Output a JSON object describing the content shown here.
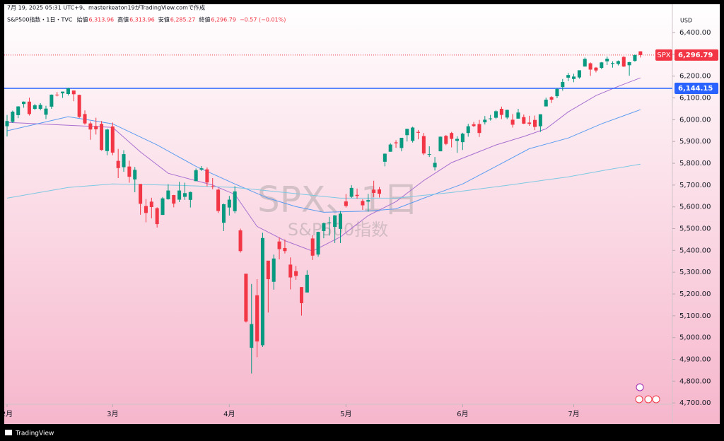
{
  "header": {
    "created": "7月 19, 2025 05:31 UTC+9、masterkeaton19がTradingView.comで作成",
    "brand": "TradingView"
  },
  "chart_data": {
    "type": "candlestick",
    "legend": {
      "symbol": "S&P500指数・1日・TVC",
      "items": [
        {
          "label": "始値",
          "value": "6,313.96"
        },
        {
          "label": "高値",
          "value": "6,313.96"
        },
        {
          "label": "安値",
          "value": "6,285.27"
        },
        {
          "label": "終値",
          "value": "6,296.79"
        }
      ],
      "change": "−0.57 (−0.01%)"
    },
    "watermark": {
      "title": "SPX、1日",
      "subtitle": "S&P500指数"
    },
    "currency": "USD",
    "up_color": "#089981",
    "down_color": "#f23645",
    "ohlc": [
      [
        5970,
        6022,
        5923,
        5994
      ],
      [
        5990,
        6042,
        5985,
        6037
      ],
      [
        6021,
        6062,
        6007,
        6061
      ],
      [
        6072,
        6084,
        6055,
        6083
      ],
      [
        6083,
        6101,
        6019,
        6026
      ],
      [
        6050,
        6073,
        6044,
        6066
      ],
      [
        6050,
        6076,
        6043,
        6068
      ],
      [
        6023,
        6064,
        6003,
        6051
      ],
      [
        6060,
        6116,
        6050,
        6115
      ],
      [
        6115,
        6127,
        6107,
        6114
      ],
      [
        6121,
        6129,
        6100,
        6129
      ],
      [
        6118,
        6147,
        6111,
        6144
      ],
      [
        6134,
        6134,
        6085,
        6117
      ],
      [
        6114,
        6115,
        6008,
        6013
      ],
      [
        6026,
        6043,
        5977,
        5983
      ],
      [
        5983,
        5992,
        5908,
        5955
      ],
      [
        5971,
        6009,
        5932,
        5956
      ],
      [
        5981,
        5994,
        5858,
        5861
      ],
      [
        5856,
        5959,
        5837,
        5955
      ],
      [
        5969,
        5987,
        5837,
        5849
      ],
      [
        5811,
        5866,
        5732,
        5778
      ],
      [
        5782,
        5860,
        5761,
        5842
      ],
      [
        5785,
        5812,
        5711,
        5738
      ],
      [
        5726,
        5783,
        5667,
        5770
      ],
      [
        5705,
        5705,
        5564,
        5614
      ],
      [
        5604,
        5636,
        5529,
        5572
      ],
      [
        5624,
        5642,
        5547,
        5599
      ],
      [
        5594,
        5598,
        5505,
        5521
      ],
      [
        5563,
        5645,
        5563,
        5639
      ],
      [
        5635,
        5704,
        5633,
        5675
      ],
      [
        5654,
        5655,
        5598,
        5615
      ],
      [
        5633,
        5715,
        5622,
        5675
      ],
      [
        5646,
        5711,
        5632,
        5663
      ],
      [
        5632,
        5670,
        5597,
        5668
      ],
      [
        5718,
        5776,
        5718,
        5768
      ],
      [
        5771,
        5787,
        5765,
        5777
      ],
      [
        5772,
        5781,
        5694,
        5712
      ],
      [
        5695,
        5732,
        5681,
        5693
      ],
      [
        5679,
        5685,
        5572,
        5581
      ],
      [
        5527,
        5615,
        5489,
        5612
      ],
      [
        5597,
        5650,
        5560,
        5633
      ],
      [
        5580,
        5695,
        5571,
        5671
      ],
      [
        5492,
        5500,
        5390,
        5397
      ],
      [
        5293,
        5293,
        5069,
        5074
      ],
      [
        4953,
        5246,
        4835,
        5062
      ],
      [
        5194,
        5268,
        4910,
        4982
      ],
      [
        4965,
        5481,
        4957,
        5457
      ],
      [
        5353,
        5353,
        5115,
        5268
      ],
      [
        5256,
        5381,
        5220,
        5363
      ],
      [
        5441,
        5460,
        5359,
        5406
      ],
      [
        5411,
        5450,
        5386,
        5397
      ],
      [
        5335,
        5368,
        5221,
        5276
      ],
      [
        5305,
        5329,
        5265,
        5283
      ],
      [
        5232,
        5232,
        5101,
        5158
      ],
      [
        5207,
        5309,
        5207,
        5288
      ],
      [
        5455,
        5470,
        5356,
        5376
      ],
      [
        5381,
        5486,
        5371,
        5485
      ],
      [
        5489,
        5528,
        5456,
        5525
      ],
      [
        5529,
        5554,
        5468,
        5529
      ],
      [
        5508,
        5562,
        5434,
        5561
      ],
      [
        5499,
        5581,
        5434,
        5569
      ],
      [
        5625,
        5659,
        5597,
        5604
      ],
      [
        5646,
        5700,
        5641,
        5687
      ],
      [
        5655,
        5684,
        5637,
        5650
      ],
      [
        5627,
        5635,
        5586,
        5607
      ],
      [
        5624,
        5660,
        5578,
        5631
      ],
      [
        5679,
        5720,
        5645,
        5664
      ],
      [
        5680,
        5691,
        5643,
        5660
      ],
      [
        5807,
        5845,
        5786,
        5844
      ],
      [
        5853,
        5892,
        5853,
        5886
      ],
      [
        5896,
        5906,
        5871,
        5892
      ],
      [
        5870,
        5917,
        5855,
        5917
      ],
      [
        5929,
        5959,
        5900,
        5958
      ],
      [
        5903,
        5968,
        5895,
        5964
      ],
      [
        5944,
        5953,
        5910,
        5940
      ],
      [
        5925,
        5939,
        5838,
        5845
      ],
      [
        5841,
        5878,
        5829,
        5842
      ],
      [
        5782,
        5829,
        5767,
        5802
      ],
      [
        5855,
        5923,
        5855,
        5922
      ],
      [
        5926,
        5930,
        5883,
        5889
      ],
      [
        5939,
        5944,
        5873,
        5912
      ],
      [
        5903,
        5924,
        5848,
        5912
      ],
      [
        5897,
        5940,
        5861,
        5936
      ],
      [
        5939,
        5981,
        5922,
        5970
      ],
      [
        5979,
        5990,
        5966,
        5971
      ],
      [
        5980,
        5999,
        5921,
        5939
      ],
      [
        5988,
        6017,
        5978,
        6000
      ],
      [
        6004,
        6022,
        5996,
        6006
      ],
      [
        6009,
        6044,
        6003,
        6039
      ],
      [
        6050,
        6060,
        6003,
        6022
      ],
      [
        6010,
        6046,
        6003,
        6045
      ],
      [
        6000,
        6026,
        5964,
        5977
      ],
      [
        6005,
        6050,
        6005,
        6033
      ],
      [
        6012,
        6024,
        5980,
        5982
      ],
      [
        5987,
        6018,
        5972,
        5981
      ],
      [
        5999,
        6019,
        5952,
        5967
      ],
      [
        5970,
        6025,
        5944,
        6025
      ],
      [
        6061,
        6101,
        6061,
        6092
      ],
      [
        6104,
        6108,
        6077,
        6092
      ],
      [
        6108,
        6146,
        6099,
        6141
      ],
      [
        6150,
        6187,
        6133,
        6173
      ],
      [
        6193,
        6215,
        6177,
        6205
      ],
      [
        6187,
        6211,
        6172,
        6198
      ],
      [
        6194,
        6227,
        6188,
        6227
      ],
      [
        6244,
        6285,
        6244,
        6279
      ],
      [
        6259,
        6263,
        6201,
        6230
      ],
      [
        6239,
        6242,
        6217,
        6226
      ],
      [
        6238,
        6265,
        6232,
        6263
      ],
      [
        6268,
        6290,
        6251,
        6280
      ],
      [
        6256,
        6268,
        6239,
        6260
      ],
      [
        6256,
        6272,
        6249,
        6269
      ],
      [
        6288,
        6292,
        6242,
        6244
      ],
      [
        6250,
        6266,
        6202,
        6264
      ],
      [
        6270,
        6299,
        6266,
        6297
      ],
      [
        6313.96,
        6313.96,
        6285.27,
        6296.79
      ]
    ],
    "lines": [
      {
        "color": "#a970d0",
        "x": [
          0,
          19,
          24,
          29,
          37,
          41,
          45,
          50,
          55,
          60,
          65,
          70,
          75,
          80,
          88,
          93,
          97,
          101,
          106,
          110,
          114
        ],
        "values": [
          5988,
          5965,
          5852,
          5754,
          5700,
          5657,
          5510,
          5445,
          5397,
          5462,
          5560,
          5624,
          5721,
          5803,
          5884,
          5923,
          5958,
          6036,
          6111,
          6153,
          6192
        ]
      },
      {
        "color": "#5b9cf0",
        "x": [
          0,
          11,
          19,
          27,
          34,
          41,
          47,
          52,
          57,
          65,
          70,
          75,
          82,
          88,
          94,
          101,
          107,
          114
        ],
        "values": [
          5949,
          6014,
          5981,
          5884,
          5786,
          5705,
          5640,
          5601,
          5575,
          5581,
          5591,
          5640,
          5705,
          5786,
          5867,
          5916,
          5981,
          6046
        ]
      },
      {
        "color": "#7ec8e3",
        "x": [
          0,
          11,
          19,
          31,
          41,
          50,
          60,
          70,
          80,
          90,
          101,
          108,
          114
        ],
        "values": [
          5640,
          5689,
          5705,
          5699,
          5689,
          5666,
          5640,
          5640,
          5666,
          5699,
          5738,
          5770,
          5796
        ]
      }
    ],
    "hline": {
      "value": 6144.15,
      "label": "6,144.15",
      "color": "#2962ff"
    },
    "price_line": {
      "name": "SPX",
      "value": 6296.79,
      "label": "6,296.79",
      "color": "#f23645"
    },
    "xlim": [
      -0.51,
      119.75
    ],
    "ylim": [
      4694,
      6530
    ],
    "xticks": [
      {
        "value": 0,
        "label": "2月"
      },
      {
        "value": 19,
        "label": "3月"
      },
      {
        "value": 40,
        "label": "4月"
      },
      {
        "value": 61,
        "label": "5月"
      },
      {
        "value": 82,
        "label": "6月"
      },
      {
        "value": 102,
        "label": "7月"
      }
    ],
    "yticks": [
      {
        "value": 4700,
        "label": "4,700.00"
      },
      {
        "value": 4800,
        "label": "4,800.00"
      },
      {
        "value": 4900,
        "label": "4,900.00"
      },
      {
        "value": 5000,
        "label": "5,000.00"
      },
      {
        "value": 5100,
        "label": "5,100.00"
      },
      {
        "value": 5200,
        "label": "5,200.00"
      },
      {
        "value": 5300,
        "label": "5,300.00"
      },
      {
        "value": 5400,
        "label": "5,400.00"
      },
      {
        "value": 5500,
        "label": "5,500.00"
      },
      {
        "value": 5600,
        "label": "5,600.00"
      },
      {
        "value": 5700,
        "label": "5,700.00"
      },
      {
        "value": 5800,
        "label": "5,800.00"
      },
      {
        "value": 5900,
        "label": "5,900.00"
      },
      {
        "value": 6000,
        "label": "6,000.00"
      },
      {
        "value": 6100,
        "label": "6,100.00"
      },
      {
        "value": 6200,
        "label": "6,200.00"
      },
      {
        "value": 6300,
        "label": "6,300.00"
      },
      {
        "value": 6400,
        "label": "6,400.00"
      }
    ]
  }
}
